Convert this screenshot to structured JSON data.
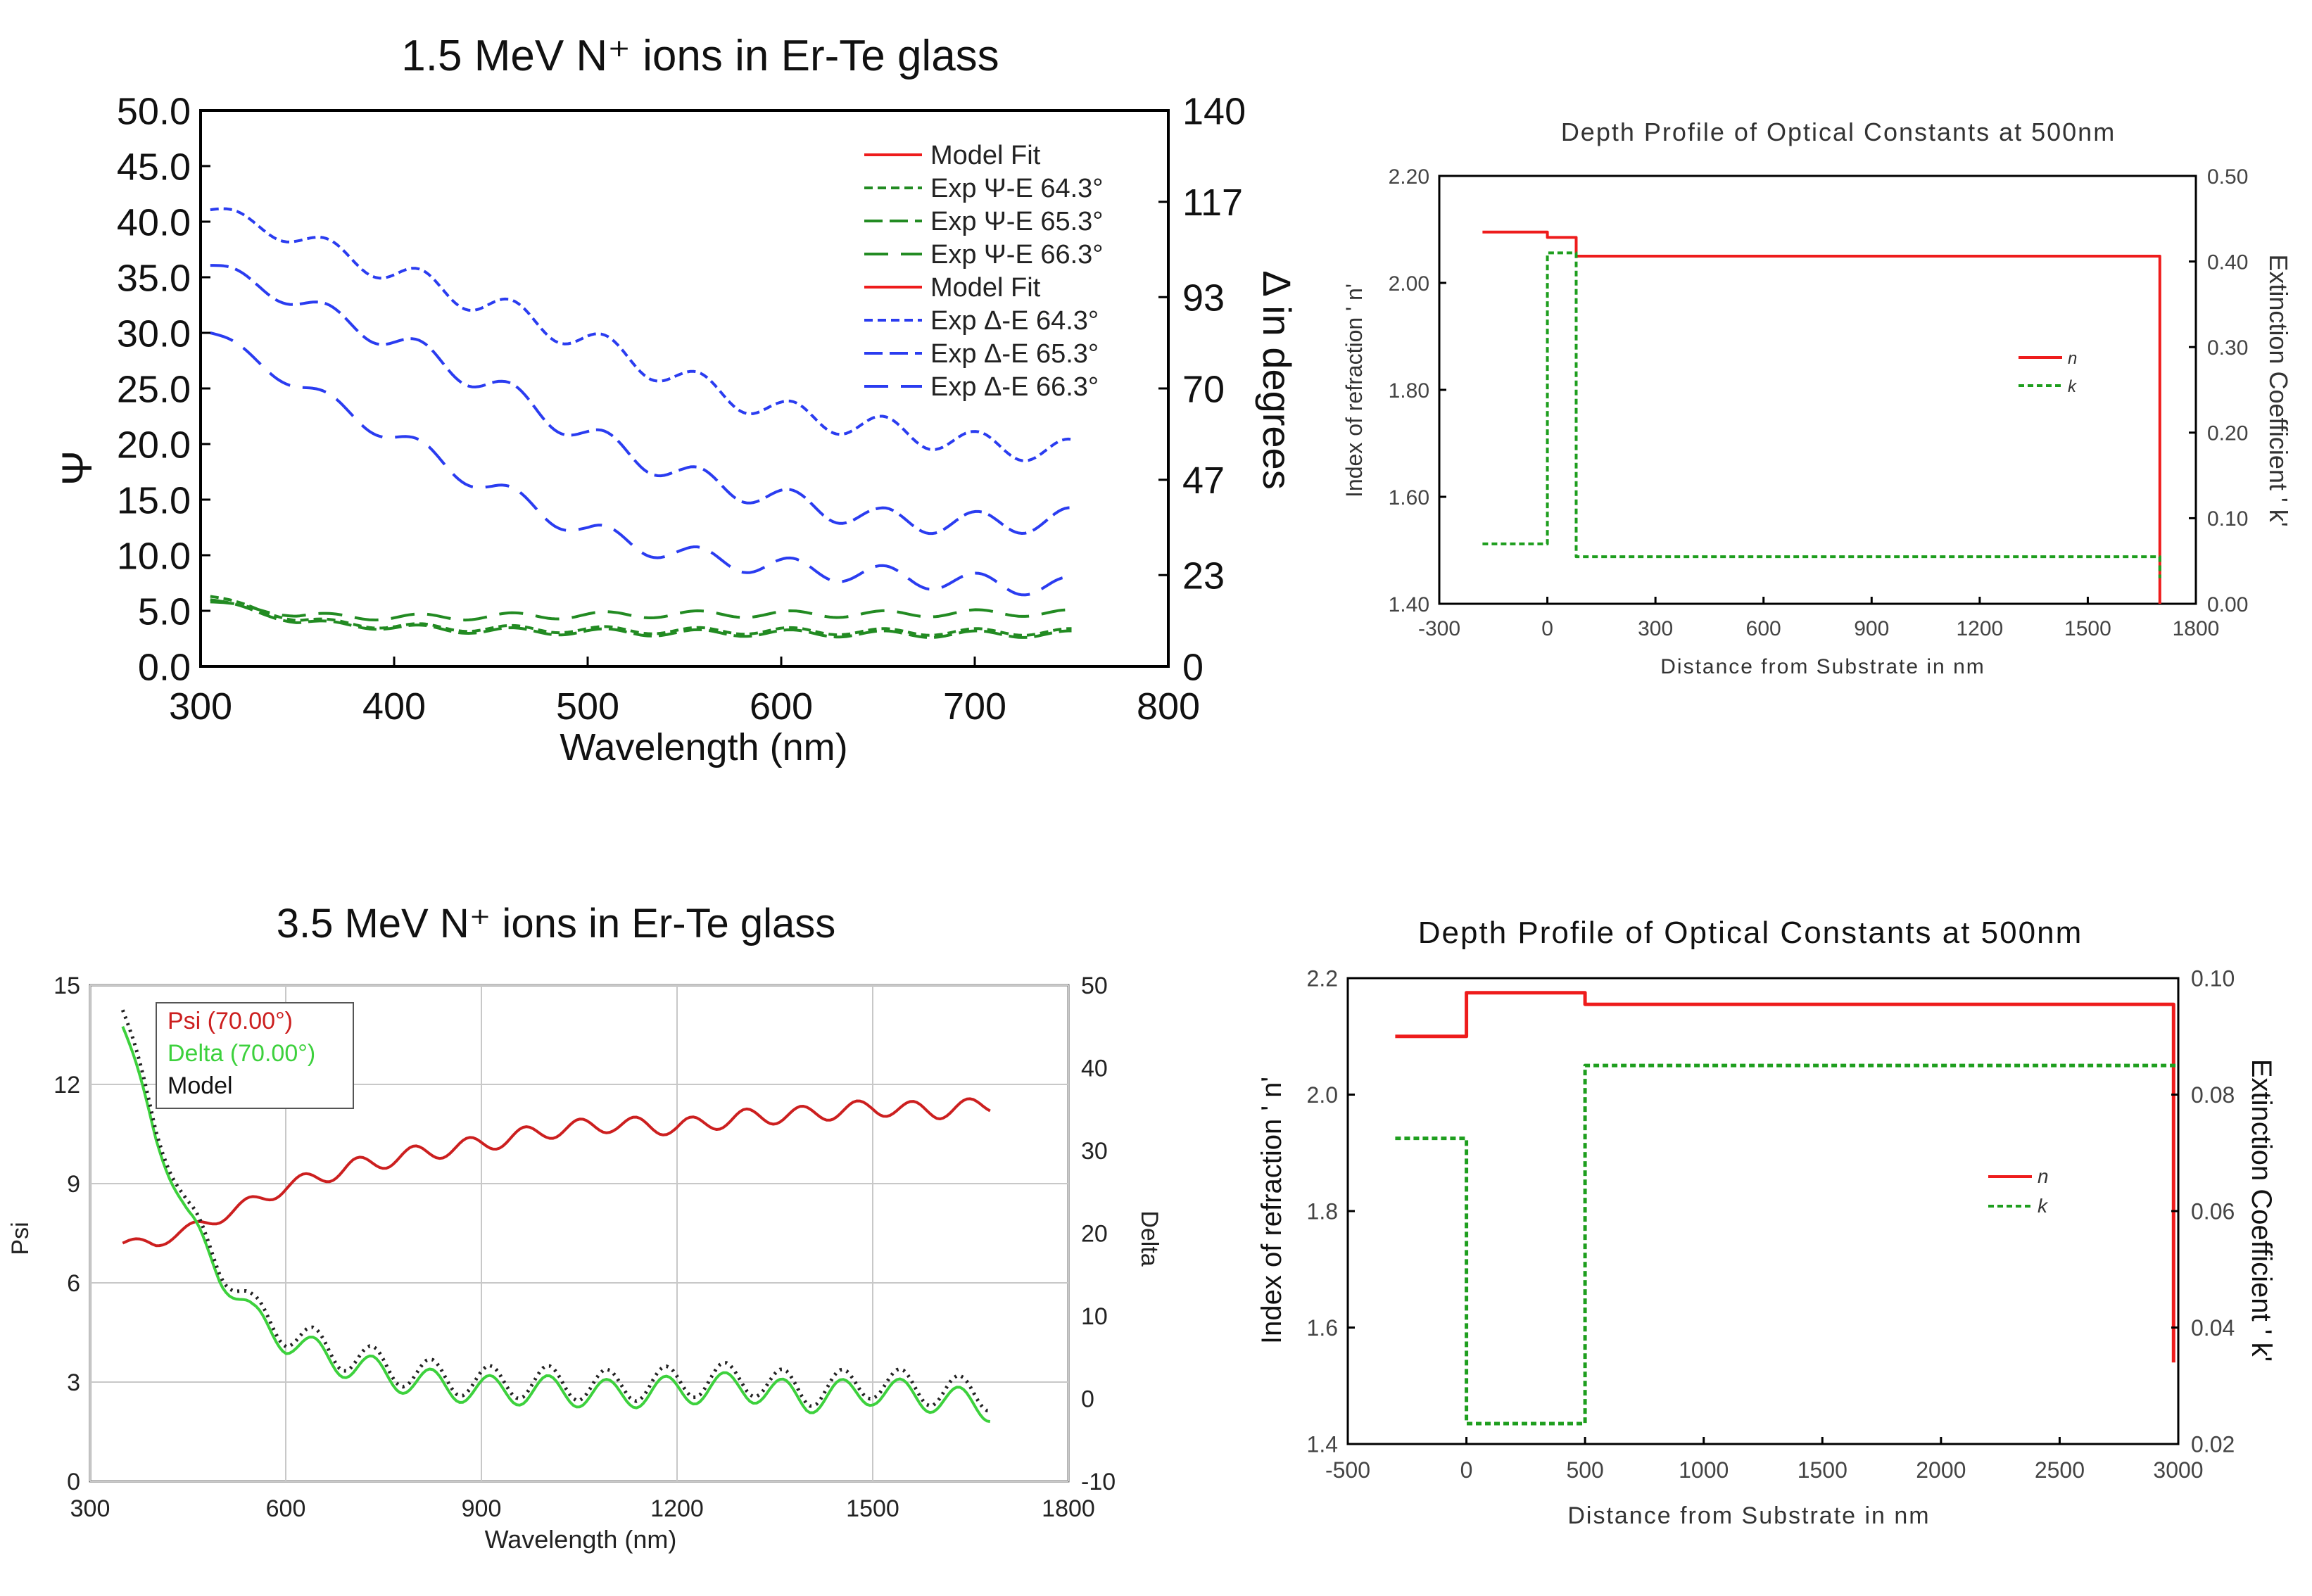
{
  "chart_data": [
    {
      "type": "line",
      "title": "1.5 MeV N⁺ ions in Er-Te glass",
      "xlabel": "Wavelength (nm)",
      "ylabel": "Ψ",
      "y2label": "Δ in degrees",
      "xlim": [
        300,
        800
      ],
      "ylim": [
        0,
        50
      ],
      "y2lim": [
        0,
        140
      ],
      "xticks": [
        "300",
        "400",
        "500",
        "600",
        "700",
        "800"
      ],
      "yticks": [
        "0.0",
        "5.0",
        "10.0",
        "15.0",
        "20.0",
        "25.0",
        "30.0",
        "35.0",
        "40.0",
        "45.0",
        "50.0"
      ],
      "y2ticks": [
        "0",
        "23",
        "47",
        "70",
        "93",
        "117",
        "140"
      ],
      "legend": [
        "Model Fit",
        "Exp Ψ-E 64.3°",
        "Exp Ψ-E 65.3°",
        "Exp Ψ-E 66.3°",
        "Model Fit",
        "Exp Δ-E 64.3°",
        "Exp Δ-E 65.3°",
        "Exp Δ-E 66.3°"
      ],
      "series": [
        {
          "name": "Exp Ψ-E 64.3°",
          "color": "#228b22",
          "dash": "short",
          "axis": "left",
          "x": [
            305,
            350,
            400,
            450,
            500,
            550,
            600,
            650,
            700,
            750
          ],
          "values": [
            6.3,
            4.2,
            3.6,
            3.4,
            3.3,
            3.2,
            3.2,
            3.1,
            3.1,
            3.1
          ],
          "osc_amp": 0.3,
          "osc_period": 48
        },
        {
          "name": "Exp Ψ-E 65.3°",
          "color": "#228b22",
          "dash": "medium",
          "axis": "left",
          "x": [
            305,
            350,
            400,
            450,
            500,
            550,
            600,
            650,
            700,
            750
          ],
          "values": [
            6.0,
            4.0,
            3.5,
            3.2,
            3.1,
            3.0,
            3.0,
            2.9,
            2.9,
            2.9
          ],
          "osc_amp": 0.3,
          "osc_period": 48
        },
        {
          "name": "Exp Ψ-E 66.3°",
          "color": "#228b22",
          "dash": "long",
          "axis": "left",
          "x": [
            305,
            350,
            400,
            450,
            500,
            550,
            600,
            650,
            700,
            750
          ],
          "values": [
            5.8,
            4.6,
            4.4,
            4.5,
            4.6,
            4.7,
            4.7,
            4.7,
            4.8,
            4.8
          ],
          "osc_amp": 0.3,
          "osc_period": 48
        },
        {
          "name": "Exp Δ-E 64.3°",
          "color": "#2a3cf0",
          "dash": "short",
          "axis": "right",
          "x": [
            305,
            350,
            400,
            450,
            500,
            550,
            600,
            650,
            700,
            750
          ],
          "values": [
            115,
            108,
            99,
            91,
            82,
            72,
            64,
            60,
            56,
            54
          ],
          "osc_amp": 3.2,
          "osc_period": 48
        },
        {
          "name": "Exp Δ-E 65.3°",
          "color": "#2a3cf0",
          "dash": "medium",
          "axis": "right",
          "x": [
            305,
            350,
            400,
            450,
            500,
            550,
            600,
            650,
            700,
            750
          ],
          "values": [
            101,
            92,
            82,
            71,
            58,
            48,
            42,
            37,
            36,
            37
          ],
          "osc_amp": 3.0,
          "osc_period": 48
        },
        {
          "name": "Exp Δ-E 66.3°",
          "color": "#2a3cf0",
          "dash": "long",
          "axis": "right",
          "x": [
            305,
            350,
            400,
            450,
            500,
            550,
            600,
            650,
            700,
            750
          ],
          "values": [
            84,
            71,
            58,
            45,
            34,
            28,
            25,
            23,
            21,
            20
          ],
          "osc_amp": 2.5,
          "osc_period": 48
        }
      ]
    },
    {
      "type": "line",
      "title": "Depth Profile of Optical Constants at 500nm",
      "xlabel": "Distance from Substrate in nm",
      "ylabel": "Index of refraction ' n'",
      "y2label": "Extinction Coefficient ' k'",
      "xlim": [
        -300,
        1800
      ],
      "ylim": [
        1.4,
        2.2
      ],
      "y2lim": [
        0,
        0.5
      ],
      "xticks": [
        "-300",
        "0",
        "300",
        "600",
        "900",
        "1200",
        "1500",
        "1800"
      ],
      "yticks": [
        "1.40",
        "1.60",
        "1.80",
        "2.00",
        "2.20"
      ],
      "y2ticks": [
        "0.00",
        "0.10",
        "0.20",
        "0.30",
        "0.40",
        "0.50"
      ],
      "legend": [
        "n",
        "k"
      ],
      "series": [
        {
          "name": "n",
          "color": "#ee1c1c",
          "axis": "left",
          "x": [
            -180,
            0,
            0,
            80,
            80,
            1700,
            1700
          ],
          "values": [
            2.095,
            2.095,
            2.085,
            2.085,
            2.05,
            2.05,
            1.4
          ]
        },
        {
          "name": "k",
          "color": "#1e9e1e",
          "axis": "right",
          "x": [
            -180,
            0,
            0,
            80,
            80,
            1700,
            1700
          ],
          "values": [
            0.07,
            0.07,
            0.41,
            0.41,
            0.055,
            0.055,
            0.03
          ]
        }
      ]
    },
    {
      "type": "line",
      "title": "3.5 MeV N⁺ ions in Er-Te glass",
      "xlabel": "Wavelength (nm)",
      "ylabel": "Psi",
      "y2label": "Delta",
      "xlim": [
        300,
        1800
      ],
      "ylim": [
        0,
        15
      ],
      "y2lim": [
        -10,
        50
      ],
      "xticks": [
        "300",
        "600",
        "900",
        "1200",
        "1500",
        "1800"
      ],
      "yticks": [
        "0",
        "3",
        "6",
        "9",
        "12",
        "15"
      ],
      "y2ticks": [
        "-10",
        "0",
        "10",
        "20",
        "30",
        "40",
        "50"
      ],
      "legend": [
        "Psi (70.00°)",
        "Delta (70.00°)",
        "Model"
      ],
      "series": [
        {
          "name": "Psi (70.00°)",
          "color": "#cc1f1f",
          "axis": "left",
          "x": [
            350,
            400,
            500,
            600,
            700,
            800,
            900,
            1000,
            1100,
            1200,
            1300,
            1400,
            1500,
            1600,
            1680
          ],
          "values": [
            7.2,
            7.2,
            8.0,
            8.9,
            9.5,
            9.9,
            10.2,
            10.6,
            10.8,
            10.7,
            11.0,
            11.1,
            11.3,
            11.2,
            11.4
          ],
          "osc_amp": 0.25,
          "osc_period": 85
        },
        {
          "name": "Delta (70.00°)",
          "color": "#3dd13d",
          "axis": "right",
          "x": [
            350,
            400,
            450,
            500,
            550,
            600,
            700,
            800,
            900,
            1000,
            1100,
            1200,
            1300,
            1400,
            1500,
            1600,
            1680
          ],
          "values": [
            45,
            32,
            22,
            15,
            10,
            7,
            4,
            2,
            1,
            1,
            0.5,
            1,
            1.5,
            0,
            1,
            0,
            -1
          ],
          "osc_amp": 1.8,
          "osc_period": 90
        },
        {
          "name": "Model",
          "color": "#222222",
          "dash": "dots",
          "axis": "right",
          "x": [
            350,
            400,
            450,
            500,
            550,
            600,
            700,
            800,
            900,
            1000,
            1100,
            1200,
            1300,
            1400,
            1500,
            1600,
            1680
          ],
          "values": [
            47,
            33,
            23,
            16,
            11,
            8,
            5,
            3,
            2,
            2,
            1.5,
            2,
            2.5,
            1,
            2,
            1,
            0.5
          ],
          "osc_amp": 2.0,
          "osc_period": 90
        }
      ]
    },
    {
      "type": "line",
      "title": "Depth Profile of Optical Constants at 500nm",
      "xlabel": "Distance from Substrate in nm",
      "ylabel": "Index of refraction ' n'",
      "y2label": "Extinction Coefficient ' k'",
      "xlim": [
        -500,
        3000
      ],
      "ylim": [
        1.4,
        2.2
      ],
      "y2lim": [
        0.02,
        0.1
      ],
      "xticks": [
        "-500",
        "0",
        "500",
        "1000",
        "1500",
        "2000",
        "2500",
        "3000"
      ],
      "yticks": [
        "1.4",
        "1.6",
        "1.8",
        "2.0",
        "2.2"
      ],
      "y2ticks": [
        "0.02",
        "0.04",
        "0.06",
        "0.08",
        "0.10"
      ],
      "legend": [
        "n",
        "k"
      ],
      "series": [
        {
          "name": "n",
          "color": "#ee1c1c",
          "axis": "left",
          "x": [
            -300,
            0,
            0,
            500,
            500,
            2980,
            2980
          ],
          "values": [
            2.1,
            2.1,
            2.175,
            2.175,
            2.155,
            2.155,
            1.54
          ]
        },
        {
          "name": "k",
          "color": "#1e9e1e",
          "axis": "right",
          "x": [
            -300,
            0,
            0,
            500,
            500,
            3000
          ],
          "values": [
            0.0725,
            0.0725,
            0.0235,
            0.0235,
            0.085,
            0.085
          ]
        }
      ]
    }
  ]
}
